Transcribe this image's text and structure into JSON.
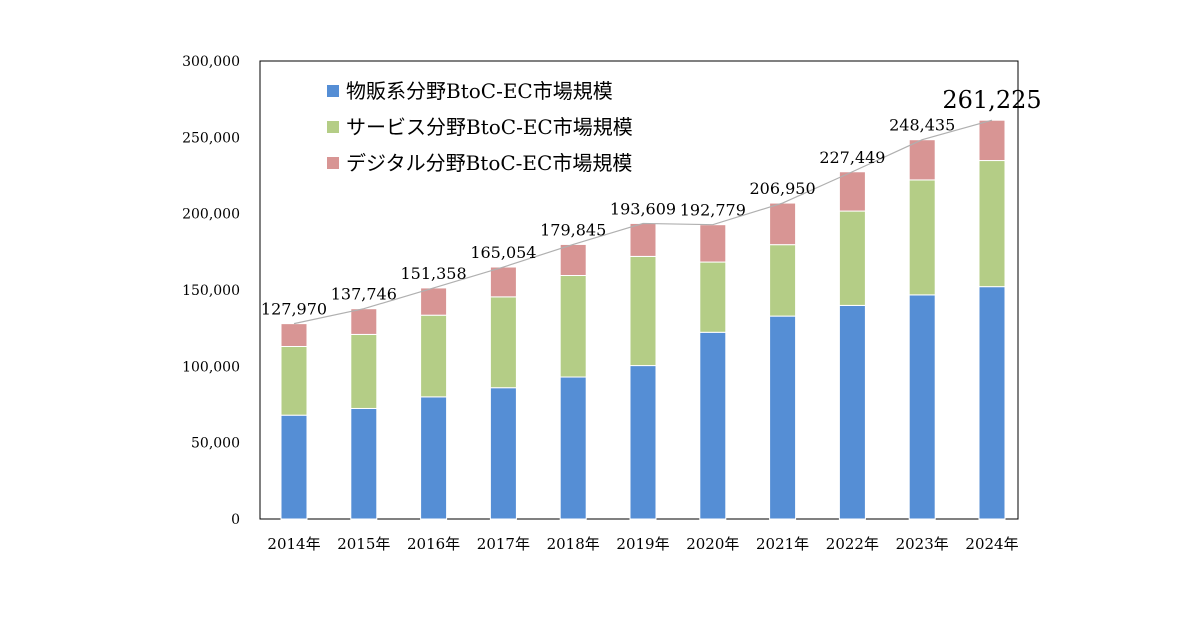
{
  "chart_data": {
    "type": "bar",
    "stacked": true,
    "title": "",
    "xlabel": "",
    "ylabel": "",
    "ylim": [
      0,
      300000
    ],
    "yticks": [
      0,
      50000,
      100000,
      150000,
      200000,
      250000,
      300000
    ],
    "ytick_labels": [
      "0",
      "50,000",
      "100,000",
      "150,000",
      "200,000",
      "250,000",
      "300,000"
    ],
    "grid": false,
    "legend_position": "top-left",
    "categories": [
      "2014年",
      "2015年",
      "2016年",
      "2017年",
      "2018年",
      "2019年",
      "2020年",
      "2021年",
      "2022年",
      "2023年",
      "2024年"
    ],
    "series": [
      {
        "name": "物販系分野BtoC-EC市場規模",
        "color": "#558ED5",
        "values": [
          68000,
          72400,
          80000,
          86000,
          93000,
          100500,
          122300,
          132900,
          139900,
          146800,
          152200
        ]
      },
      {
        "name": "サービス分野BtoC-EC市場規模",
        "color": "#B4CD86",
        "values": [
          45000,
          48500,
          53500,
          59500,
          66500,
          71500,
          46000,
          46800,
          61800,
          75300,
          82600
        ]
      },
      {
        "name": "デジタル分野BtoC-EC市場規模",
        "color": "#D89594",
        "values": [
          14970,
          16846,
          17858,
          19554,
          20345,
          21609,
          24479,
          27250,
          25749,
          26335,
          26425
        ]
      }
    ],
    "totals": [
      127970,
      137746,
      151358,
      165054,
      179845,
      193609,
      192779,
      206950,
      227449,
      248435,
      261225
    ],
    "total_labels": [
      "127,970",
      "137,746",
      "151,358",
      "165,054",
      "179,845",
      "193,609",
      "192,779",
      "206,950",
      "227,449",
      "248,435",
      "261,225"
    ],
    "total_line_color": "#B0B0B0",
    "frame_color": "#000000"
  }
}
